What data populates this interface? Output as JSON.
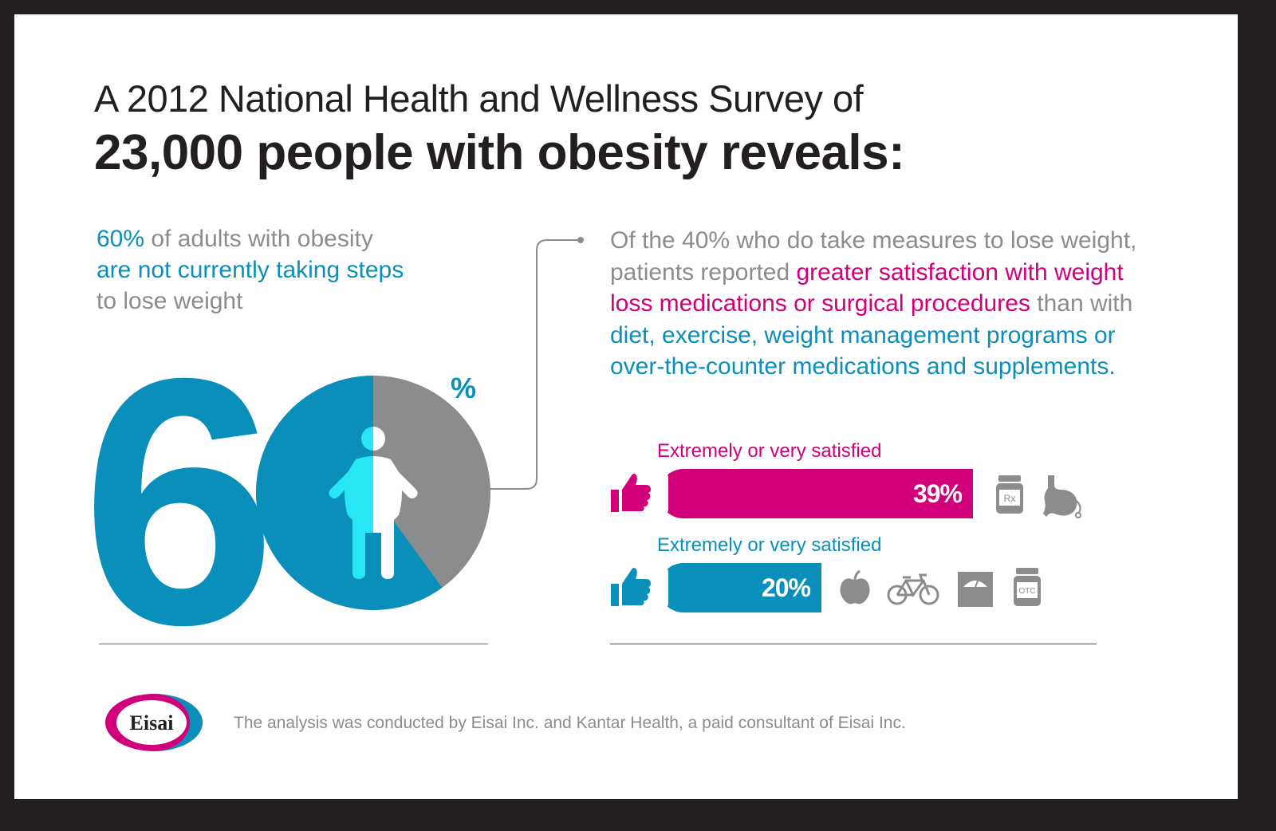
{
  "title": {
    "line1": "A 2012 National Health and Wellness Survey of",
    "line2": "23,000 people with obesity reveals:"
  },
  "left_stat": {
    "part1": "60%",
    "part2": " of adults with obesity",
    "part3": "are not currently taking steps",
    "part4": "to lose weight"
  },
  "big_number": {
    "digit_six": "6",
    "percent_sign": "%",
    "value": 60
  },
  "right_text": {
    "part1": "Of the 40% who do take measures to lose weight, patients reported ",
    "part2": "greater satisfaction with weight loss medications or surgical procedures",
    "part3": " than with ",
    "part4": "diet, exercise, weight management programs or over-the-counter medications and supplements."
  },
  "bars": [
    {
      "label": "Extremely or very satisfied",
      "value_text": "39%",
      "value": 39,
      "color": "#d1007a",
      "icons": [
        "rx-bottle-icon",
        "stomach-icon"
      ]
    },
    {
      "label": "Extremely or very satisfied",
      "value_text": "20%",
      "value": 20,
      "color": "#0a8fbb",
      "icons": [
        "apple-icon",
        "bicycle-icon",
        "scale-icon",
        "otc-bottle-icon"
      ]
    }
  ],
  "icon_text": {
    "rx": "Rx",
    "otc": "OTC"
  },
  "logo": {
    "text": "Eisai"
  },
  "footer": "The analysis was conducted by Eisai Inc. and Kantar Health, a paid consultant of Eisai Inc.",
  "colors": {
    "blue": "#0a8fbb",
    "pink": "#d1007a",
    "gray": "#8a8c8e",
    "cyan": "#29e6f5",
    "dark": "#231f20"
  }
}
